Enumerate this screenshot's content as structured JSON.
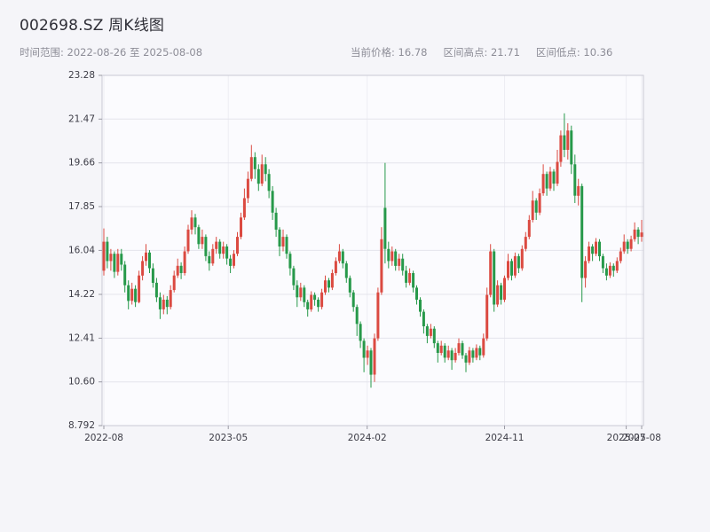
{
  "header": {
    "title": "002698.SZ 周K线图",
    "date_range_label": "时间范围: 2022-08-26 至 2025-08-08",
    "current_price_label": "当前价格: 16.78",
    "range_high_label": "区间高点: 21.71",
    "range_low_label": "区间低点: 10.36",
    "current_price": 16.78,
    "range_high": 21.71,
    "range_low": 10.36,
    "date_start": "2022-08-26",
    "date_end": "2025-08-08"
  },
  "chart_data": {
    "type": "candlestick",
    "title": "002698.SZ 周K线图",
    "ylim": [
      8.792,
      23.28
    ],
    "y_ticks": [
      8.792,
      10.6,
      12.41,
      14.22,
      16.04,
      17.85,
      19.66,
      21.47,
      23.28
    ],
    "y_tick_labels": [
      "8.792",
      "10.60",
      "12.41",
      "14.22",
      "16.04",
      "17.85",
      "19.66",
      "21.47",
      "23.28"
    ],
    "x_ticks": [
      {
        "label": "2022-08",
        "pos": 0
      },
      {
        "label": "2023-05",
        "pos": 35.4
      },
      {
        "label": "2024-02",
        "pos": 74.9
      },
      {
        "label": "2024-11",
        "pos": 114
      },
      {
        "label": "2025-07",
        "pos": 148.6
      },
      {
        "label": "2025-08",
        "pos": 153
      }
    ],
    "grid": true,
    "legend": "none",
    "up_color": "#db4a41",
    "down_color": "#27994a",
    "plot_bg": "#fbfbfe",
    "grid_color": "#e4e4ec",
    "border_color": "#c9c9d4",
    "tick_text_color": "#3c3c46",
    "candles": [
      [
        15.2,
        16.95,
        15.0,
        16.4
      ],
      [
        16.4,
        16.6,
        15.3,
        15.6
      ],
      [
        15.6,
        16.1,
        15.2,
        15.9
      ],
      [
        15.9,
        16.0,
        14.9,
        15.15
      ],
      [
        15.15,
        16.1,
        15.0,
        15.9
      ],
      [
        15.9,
        16.1,
        15.2,
        15.45
      ],
      [
        15.45,
        15.6,
        14.3,
        14.6
      ],
      [
        14.6,
        14.8,
        13.6,
        13.95
      ],
      [
        13.95,
        14.7,
        13.8,
        14.45
      ],
      [
        14.45,
        14.6,
        13.7,
        13.9
      ],
      [
        13.9,
        15.2,
        13.85,
        15.0
      ],
      [
        15.0,
        15.8,
        14.8,
        15.6
      ],
      [
        15.6,
        16.3,
        15.4,
        15.95
      ],
      [
        15.95,
        16.05,
        15.1,
        15.3
      ],
      [
        15.3,
        15.5,
        14.5,
        14.7
      ],
      [
        14.7,
        14.9,
        13.9,
        14.1
      ],
      [
        14.1,
        14.3,
        13.2,
        13.6
      ],
      [
        13.6,
        14.2,
        13.4,
        14.0
      ],
      [
        14.0,
        14.15,
        13.4,
        13.7
      ],
      [
        13.7,
        14.6,
        13.6,
        14.4
      ],
      [
        14.4,
        15.2,
        14.3,
        15.0
      ],
      [
        15.0,
        15.7,
        14.9,
        15.4
      ],
      [
        15.4,
        15.55,
        14.85,
        15.1
      ],
      [
        15.1,
        16.2,
        15.0,
        16.0
      ],
      [
        16.0,
        17.1,
        15.9,
        16.9
      ],
      [
        16.9,
        17.7,
        16.7,
        17.4
      ],
      [
        17.4,
        17.55,
        16.7,
        17.0
      ],
      [
        17.0,
        17.1,
        16.1,
        16.3
      ],
      [
        16.3,
        16.9,
        16.1,
        16.6
      ],
      [
        16.6,
        16.7,
        15.6,
        15.8
      ],
      [
        15.8,
        16.0,
        15.2,
        15.5
      ],
      [
        15.5,
        16.3,
        15.4,
        16.1
      ],
      [
        16.1,
        16.6,
        15.9,
        16.4
      ],
      [
        16.4,
        16.5,
        15.7,
        15.9
      ],
      [
        15.9,
        16.4,
        15.7,
        16.2
      ],
      [
        16.2,
        16.3,
        15.45,
        15.7
      ],
      [
        15.7,
        15.85,
        15.1,
        15.4
      ],
      [
        15.4,
        16.05,
        15.3,
        15.9
      ],
      [
        15.9,
        16.8,
        15.8,
        16.6
      ],
      [
        16.6,
        17.6,
        16.5,
        17.4
      ],
      [
        17.4,
        18.6,
        17.3,
        18.2
      ],
      [
        18.2,
        19.3,
        18.0,
        19.0
      ],
      [
        19.0,
        20.4,
        18.9,
        19.9
      ],
      [
        19.9,
        20.1,
        19.0,
        19.4
      ],
      [
        19.4,
        19.6,
        18.5,
        18.8
      ],
      [
        18.8,
        20.0,
        18.7,
        19.6
      ],
      [
        19.6,
        19.9,
        18.9,
        19.2
      ],
      [
        19.2,
        19.4,
        18.2,
        18.5
      ],
      [
        18.5,
        18.7,
        17.3,
        17.6
      ],
      [
        17.6,
        17.8,
        16.6,
        16.9
      ],
      [
        16.9,
        17.0,
        15.8,
        16.2
      ],
      [
        16.2,
        16.9,
        16.0,
        16.6
      ],
      [
        16.6,
        16.7,
        15.7,
        15.9
      ],
      [
        15.9,
        16.0,
        15.0,
        15.3
      ],
      [
        15.3,
        15.4,
        14.4,
        14.6
      ],
      [
        14.6,
        14.8,
        13.7,
        14.1
      ],
      [
        14.1,
        14.7,
        13.95,
        14.5
      ],
      [
        14.5,
        14.6,
        13.7,
        13.9
      ],
      [
        13.9,
        14.0,
        13.3,
        13.6
      ],
      [
        13.6,
        14.35,
        13.5,
        14.2
      ],
      [
        14.2,
        14.3,
        13.75,
        14.0
      ],
      [
        14.0,
        14.1,
        13.5,
        13.7
      ],
      [
        13.7,
        14.45,
        13.6,
        14.3
      ],
      [
        14.3,
        15.0,
        14.2,
        14.8
      ],
      [
        14.8,
        14.9,
        14.3,
        14.5
      ],
      [
        14.5,
        15.25,
        14.4,
        15.1
      ],
      [
        15.1,
        15.75,
        15.0,
        15.6
      ],
      [
        15.6,
        16.3,
        15.5,
        16.0
      ],
      [
        16.0,
        16.1,
        15.3,
        15.5
      ],
      [
        15.5,
        15.6,
        14.7,
        14.9
      ],
      [
        14.9,
        15.0,
        14.1,
        14.3
      ],
      [
        14.3,
        14.4,
        13.5,
        13.7
      ],
      [
        13.7,
        13.8,
        12.5,
        13.0
      ],
      [
        13.0,
        13.1,
        12.0,
        12.3
      ],
      [
        12.3,
        12.4,
        11.0,
        11.6
      ],
      [
        11.6,
        12.1,
        11.3,
        11.9
      ],
      [
        11.9,
        12.0,
        10.36,
        10.9
      ],
      [
        10.9,
        12.6,
        10.6,
        12.4
      ],
      [
        12.4,
        14.5,
        12.3,
        14.3
      ],
      [
        14.3,
        17.0,
        14.2,
        16.5
      ],
      [
        17.8,
        19.66,
        15.5,
        16.1
      ],
      [
        16.1,
        16.4,
        15.3,
        15.6
      ],
      [
        15.6,
        16.2,
        15.4,
        16.0
      ],
      [
        16.0,
        16.1,
        15.2,
        15.4
      ],
      [
        15.4,
        15.9,
        15.2,
        15.7
      ],
      [
        15.7,
        15.9,
        15.0,
        15.2
      ],
      [
        15.2,
        15.4,
        14.5,
        14.7
      ],
      [
        14.7,
        15.3,
        14.6,
        15.1
      ],
      [
        15.1,
        15.2,
        14.3,
        14.5
      ],
      [
        14.5,
        14.6,
        13.8,
        14.0
      ],
      [
        14.0,
        14.1,
        13.3,
        13.5
      ],
      [
        13.5,
        13.6,
        12.6,
        12.9
      ],
      [
        12.9,
        13.0,
        12.2,
        12.5
      ],
      [
        12.5,
        13.0,
        12.4,
        12.8
      ],
      [
        12.8,
        12.9,
        12.0,
        12.2
      ],
      [
        12.2,
        12.3,
        11.4,
        11.8
      ],
      [
        11.8,
        12.3,
        11.7,
        12.1
      ],
      [
        12.1,
        12.2,
        11.4,
        11.6
      ],
      [
        11.6,
        12.1,
        11.5,
        11.9
      ],
      [
        11.9,
        12.0,
        11.1,
        11.5
      ],
      [
        11.5,
        12.0,
        11.4,
        11.8
      ],
      [
        11.8,
        12.4,
        11.7,
        12.2
      ],
      [
        12.2,
        12.3,
        11.55,
        11.7
      ],
      [
        11.7,
        11.8,
        11.0,
        11.4
      ],
      [
        11.4,
        12.05,
        11.3,
        11.9
      ],
      [
        11.9,
        12.0,
        11.4,
        11.6
      ],
      [
        11.6,
        12.15,
        11.5,
        12.0
      ],
      [
        12.0,
        12.1,
        11.5,
        11.7
      ],
      [
        11.7,
        12.6,
        11.6,
        12.4
      ],
      [
        12.4,
        14.5,
        12.3,
        14.2
      ],
      [
        14.2,
        16.3,
        14.1,
        16.0
      ],
      [
        16.0,
        16.1,
        13.5,
        13.8
      ],
      [
        13.8,
        14.8,
        13.7,
        14.6
      ],
      [
        14.6,
        14.7,
        13.8,
        14.0
      ],
      [
        14.0,
        15.0,
        13.9,
        14.9
      ],
      [
        14.9,
        15.9,
        14.8,
        15.6
      ],
      [
        15.6,
        15.7,
        14.8,
        15.0
      ],
      [
        15.0,
        15.95,
        14.9,
        15.8
      ],
      [
        15.8,
        15.9,
        15.1,
        15.3
      ],
      [
        15.3,
        16.25,
        15.2,
        16.1
      ],
      [
        16.1,
        16.8,
        16.0,
        16.6
      ],
      [
        16.6,
        17.5,
        16.5,
        17.3
      ],
      [
        17.3,
        18.5,
        17.2,
        18.1
      ],
      [
        18.1,
        18.2,
        17.3,
        17.6
      ],
      [
        17.6,
        18.6,
        17.5,
        18.4
      ],
      [
        18.4,
        19.6,
        18.3,
        19.2
      ],
      [
        19.2,
        19.3,
        18.3,
        18.6
      ],
      [
        18.6,
        19.5,
        18.5,
        19.3
      ],
      [
        19.3,
        19.4,
        18.5,
        18.8
      ],
      [
        18.8,
        20.2,
        18.7,
        19.7
      ],
      [
        19.7,
        21.0,
        19.5,
        20.8
      ],
      [
        20.8,
        21.71,
        19.9,
        20.2
      ],
      [
        20.2,
        21.3,
        19.8,
        21.0
      ],
      [
        21.0,
        21.2,
        19.2,
        19.6
      ],
      [
        19.6,
        20.0,
        18.0,
        18.3
      ],
      [
        18.3,
        19.0,
        17.9,
        18.7
      ],
      [
        18.7,
        18.8,
        13.9,
        14.9
      ],
      [
        14.9,
        15.8,
        14.5,
        15.6
      ],
      [
        15.6,
        16.4,
        15.5,
        16.2
      ],
      [
        16.2,
        16.3,
        15.6,
        15.9
      ],
      [
        15.9,
        16.55,
        15.8,
        16.4
      ],
      [
        16.4,
        16.5,
        15.6,
        15.8
      ],
      [
        15.8,
        15.9,
        15.1,
        15.3
      ],
      [
        15.3,
        15.5,
        14.8,
        15.0
      ],
      [
        15.0,
        15.55,
        14.9,
        15.4
      ],
      [
        15.4,
        15.5,
        14.95,
        15.2
      ],
      [
        15.2,
        15.75,
        15.1,
        15.6
      ],
      [
        15.6,
        16.15,
        15.5,
        16.0
      ],
      [
        16.0,
        16.7,
        15.9,
        16.4
      ],
      [
        16.4,
        16.5,
        15.9,
        16.1
      ],
      [
        16.1,
        16.65,
        16.0,
        16.5
      ],
      [
        16.5,
        17.2,
        16.4,
        16.9
      ],
      [
        16.9,
        17.0,
        16.3,
        16.6
      ],
      [
        16.6,
        17.3,
        16.4,
        16.78
      ]
    ]
  }
}
